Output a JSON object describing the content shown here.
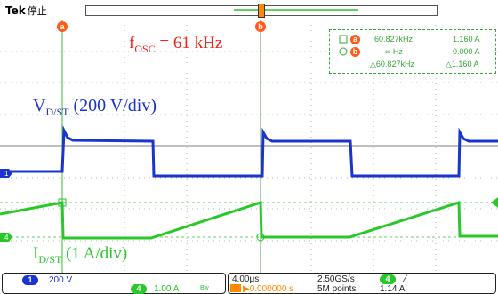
{
  "header": {
    "brand": "Tek",
    "state": "停止"
  },
  "cursors": {
    "a_label": "a",
    "b_label": "b"
  },
  "measurement_box": {
    "row_a": {
      "freq": "60.827kHz",
      "current": "1.160 A"
    },
    "row_b": {
      "freq": "∞ Hz",
      "current": "0.000 A"
    },
    "row_delta": {
      "freq": "△60.827kHz",
      "current": "△1.160 A"
    }
  },
  "annotations": {
    "fosc": {
      "prefix": "f",
      "sub": "OSC",
      "text": " = 61 kHz",
      "color": "#ff1a1a"
    },
    "vdst": {
      "prefix": "V",
      "sub": "D/ST",
      "text": " (200 V/div)",
      "color": "#1a34cc"
    },
    "idst": {
      "prefix": "I",
      "sub": "D/ST",
      "text": " (1 A/div)",
      "color": "#28c828"
    }
  },
  "channel_markers": {
    "ch1": "1",
    "ch4": "4"
  },
  "status_bar": {
    "ch1_badge": "1",
    "ch1_scale": "200 V",
    "ch4_badge": "4",
    "ch4_scale": "1.00 A",
    "ch4_bw": "Bw",
    "timebase": "4.00μs",
    "trigger_pos": "▶0.000000 s",
    "sample_rate": "2.50GS/s",
    "record_len": "5M points",
    "trig_badge": "4",
    "trig_slope": "∕",
    "trig_level": "1.14 A"
  },
  "colors": {
    "ch1": "#1a34cc",
    "ch4": "#28c828",
    "cursor": "#ff5a1a",
    "grid": "#888888"
  }
}
